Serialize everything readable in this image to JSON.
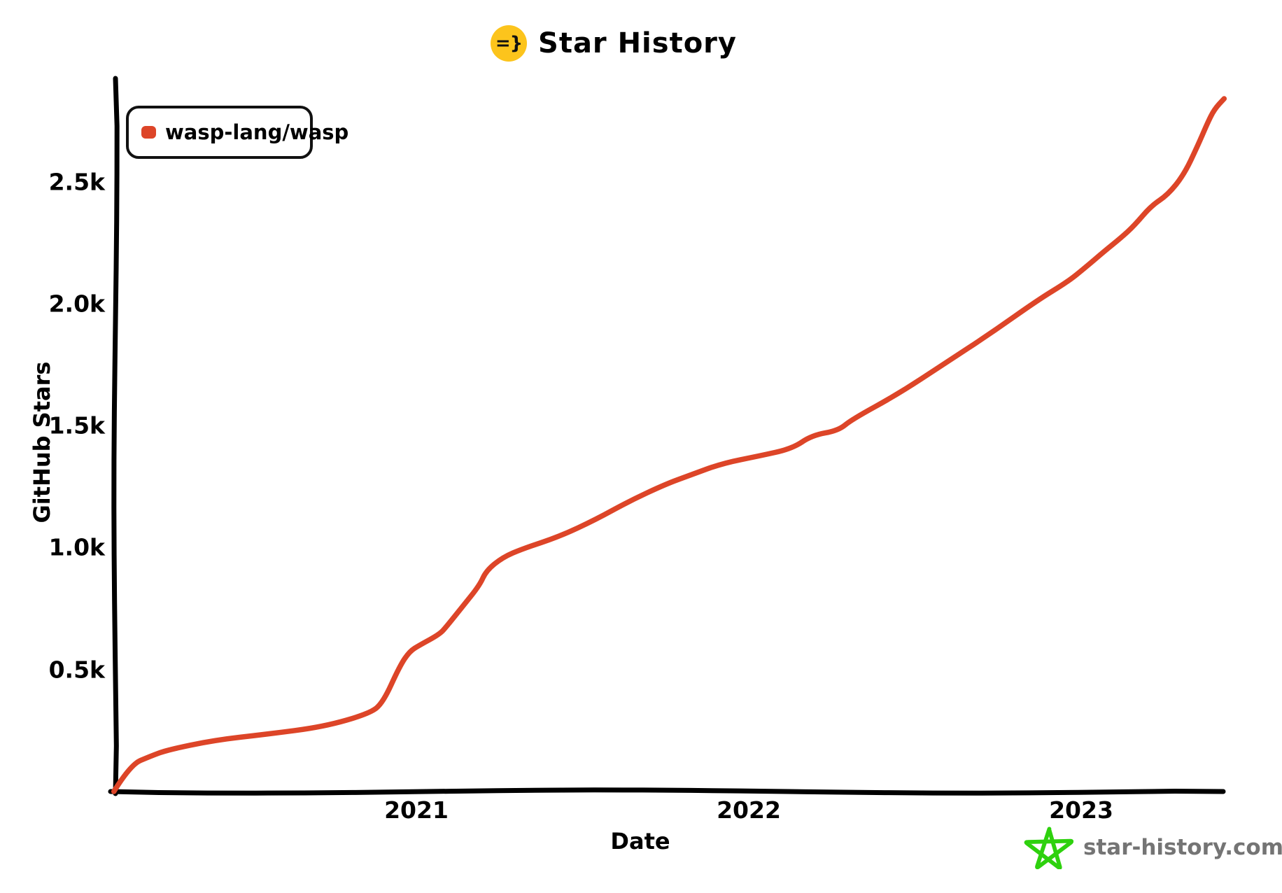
{
  "header": {
    "title": "Star History",
    "logo_glyph": "=}",
    "logo_color": "#FCC41C"
  },
  "legend": {
    "repo_label": "wasp-lang/wasp",
    "marker_color": "#DD4528"
  },
  "footer": {
    "site_label": "star-history.com",
    "star_color": "#2ED10E",
    "text_color": "#747474"
  },
  "chart_data": {
    "type": "line",
    "title": "Star History",
    "xlabel": "Date",
    "ylabel": "GitHub Stars",
    "grid": false,
    "legend_position": "top-left",
    "x_axis": {
      "unit": "year",
      "range": [
        2020.08,
        2023.44
      ],
      "ticks": [
        2021,
        2022,
        2023
      ],
      "tick_labels": [
        "2021",
        "2022",
        "2023"
      ]
    },
    "y_axis": {
      "unit": "stars",
      "range": [
        0,
        2930
      ],
      "ticks": [
        500,
        1000,
        1500,
        2000,
        2500
      ],
      "tick_labels": [
        "0.5k",
        "1.0k",
        "1.5k",
        "2.0k",
        "2.5k"
      ]
    },
    "series": [
      {
        "name": "wasp-lang/wasp",
        "color": "#DD4528",
        "points": [
          [
            2020.09,
            0
          ],
          [
            2020.14,
            110
          ],
          [
            2020.2,
            145
          ],
          [
            2020.25,
            170
          ],
          [
            2020.39,
            210
          ],
          [
            2020.55,
            235
          ],
          [
            2020.72,
            265
          ],
          [
            2020.86,
            320
          ],
          [
            2020.9,
            365
          ],
          [
            2020.95,
            515
          ],
          [
            2020.98,
            575
          ],
          [
            2021.01,
            600
          ],
          [
            2021.07,
            645
          ],
          [
            2021.09,
            675
          ],
          [
            2021.14,
            760
          ],
          [
            2021.19,
            845
          ],
          [
            2021.21,
            905
          ],
          [
            2021.26,
            960
          ],
          [
            2021.32,
            995
          ],
          [
            2021.43,
            1045
          ],
          [
            2021.54,
            1115
          ],
          [
            2021.64,
            1190
          ],
          [
            2021.75,
            1260
          ],
          [
            2021.82,
            1295
          ],
          [
            2021.92,
            1345
          ],
          [
            2022.03,
            1375
          ],
          [
            2022.13,
            1405
          ],
          [
            2022.19,
            1460
          ],
          [
            2022.27,
            1480
          ],
          [
            2022.31,
            1525
          ],
          [
            2022.45,
            1630
          ],
          [
            2022.59,
            1755
          ],
          [
            2022.73,
            1880
          ],
          [
            2022.87,
            2015
          ],
          [
            2022.96,
            2090
          ],
          [
            2023.01,
            2145
          ],
          [
            2023.07,
            2215
          ],
          [
            2023.12,
            2270
          ],
          [
            2023.16,
            2320
          ],
          [
            2023.21,
            2400
          ],
          [
            2023.26,
            2445
          ],
          [
            2023.31,
            2530
          ],
          [
            2023.35,
            2645
          ],
          [
            2023.38,
            2740
          ],
          [
            2023.4,
            2795
          ],
          [
            2023.43,
            2840
          ]
        ]
      }
    ]
  }
}
